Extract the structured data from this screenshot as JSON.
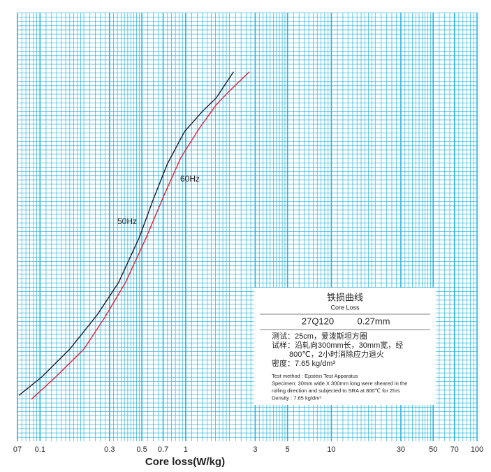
{
  "chart_data": {
    "type": "line",
    "x_label": "Core loss(W/kg)",
    "xlim": [
      0.07,
      100
    ],
    "log_x": true,
    "xticks": [
      {
        "value": 0.07,
        "label": "07"
      },
      0.1,
      0.3,
      0.5,
      0.7,
      1,
      3,
      5,
      10,
      30,
      50,
      70,
      100
    ],
    "ylim": [
      0,
      1
    ],
    "grid": true,
    "grid_color": "#2bb3dd",
    "series": [
      {
        "name": "50Hz",
        "color": "#1a1a2e",
        "x": [
          0.0716,
          0.1028,
          0.16,
          0.248,
          0.346,
          0.481,
          0.6,
          0.748,
          0.984,
          1.3,
          1.62,
          2.13
        ],
        "values": [
          0.107,
          0.15,
          0.215,
          0.296,
          0.37,
          0.476,
          0.565,
          0.647,
          0.723,
          0.769,
          0.801,
          0.862
        ]
      },
      {
        "name": "60Hz",
        "color": "#e0223a",
        "x": [
          0.0873,
          0.128,
          0.2,
          0.277,
          0.386,
          0.537,
          0.708,
          0.931,
          1.23,
          1.62,
          2.01,
          2.74
        ],
        "values": [
          0.098,
          0.15,
          0.215,
          0.288,
          0.37,
          0.476,
          0.573,
          0.663,
          0.728,
          0.785,
          0.818,
          0.862
        ]
      }
    ],
    "info_box": {
      "title_cn": "铁损曲线",
      "title_en": "Core Loss",
      "grade": "27Q120",
      "thickness": "0.27mm",
      "cn_lines": [
        "测试：25cm，爱泼斯坦方圈",
        "试样：沿轧向300mm长，30mm宽，经",
        "800℃，2小时消除应力退火",
        "密度：7.65 kg/dm³"
      ],
      "en_lines": [
        "Test method : Epstein Test Apparatus",
        "Specimen: 30mm wide X 300mm long were sheared in the",
        "rolling direction and subjected to SRA at 800℃ for 2hrs",
        "Density : 7.65 kg/dm³"
      ]
    }
  }
}
